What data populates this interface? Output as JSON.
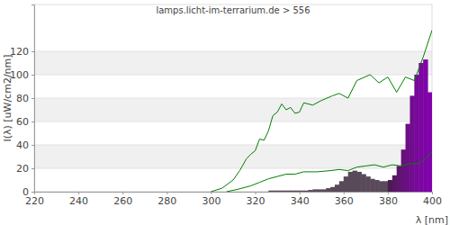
{
  "chart_data": {
    "type": "line",
    "title": "lamps.licht-im-terrarium.de > 556",
    "x_label": "λ [nm]",
    "y_label": "I(λ)  [uW/cm2/nm]",
    "xlim": [
      220,
      400
    ],
    "xticks": [
      220,
      240,
      260,
      280,
      300,
      320,
      340,
      360,
      380,
      400
    ],
    "ylim": [
      0,
      160
    ],
    "yticks": [
      0,
      20,
      40,
      60,
      80,
      100,
      120
    ],
    "grid": true,
    "series": [
      {
        "type": "bar",
        "x": [
          326,
          328,
          330,
          332,
          334,
          336,
          338,
          340,
          342,
          344,
          346,
          348,
          350,
          352,
          354,
          356,
          358,
          360,
          362,
          364,
          366,
          368,
          370,
          372,
          374,
          376,
          378,
          380,
          382,
          384,
          386,
          388,
          390,
          392,
          394,
          396,
          398
        ],
        "values": [
          1,
          1,
          1,
          1,
          1,
          1,
          1,
          1,
          1,
          1.5,
          2,
          2,
          2,
          3,
          4,
          6,
          9,
          13,
          17,
          18,
          17,
          15,
          13,
          11,
          10,
          9,
          9,
          10,
          14,
          22,
          36,
          58,
          82,
          100,
          110,
          113,
          85
        ],
        "colors": [
          "#594a59",
          "#594a59",
          "#594a59",
          "#594a59",
          "#594a59",
          "#594a59",
          "#594a59",
          "#594a59",
          "#594a59",
          "#594a59",
          "#594a59",
          "#594a59",
          "#594a59",
          "#594a59",
          "#594a59",
          "#594a59",
          "#594a59",
          "#594a59",
          "#594a59",
          "#594a59",
          "#594a59",
          "#594a59",
          "#594a59",
          "#594a59",
          "#594a59",
          "#594a59",
          "#594a59",
          "#4d1a55",
          "#561862",
          "#5f156e",
          "#66127a",
          "#6c0f85",
          "#720c8f",
          "#770998",
          "#7b06a0",
          "#7e04a6",
          "#8002aa"
        ]
      },
      {
        "type": "line",
        "color": "#008000",
        "x": [
          300,
          305,
          310,
          313,
          316,
          318,
          320,
          322,
          324,
          326,
          328,
          330,
          332,
          334,
          336,
          338,
          340,
          342,
          346,
          350,
          355,
          358,
          362,
          366,
          372,
          376,
          380,
          384,
          388,
          392,
          396,
          400
        ],
        "values": [
          0,
          3,
          10,
          18,
          28,
          32,
          35,
          45,
          44,
          52,
          65,
          68,
          75,
          70,
          72,
          67,
          68,
          76,
          74,
          78,
          82,
          84,
          80,
          95,
          100,
          93,
          98,
          85,
          98,
          95,
          115,
          138
        ]
      },
      {
        "type": "line",
        "color": "#008000",
        "x": [
          307,
          312,
          318,
          322,
          326,
          330,
          334,
          338,
          342,
          348,
          354,
          358,
          362,
          366,
          370,
          374,
          378,
          382,
          386,
          390,
          394,
          398,
          400
        ],
        "values": [
          0,
          2,
          5,
          8,
          11,
          13,
          15,
          15,
          17,
          17,
          18,
          19,
          18,
          21,
          22,
          23,
          21,
          23,
          22,
          24,
          24,
          30,
          34
        ]
      }
    ]
  }
}
